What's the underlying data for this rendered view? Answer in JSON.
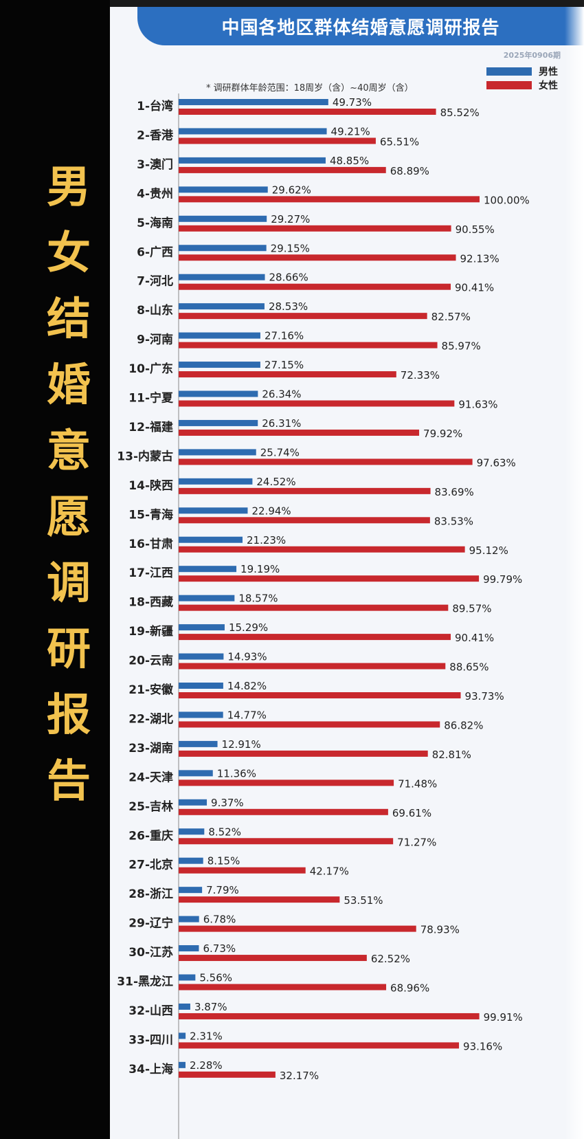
{
  "side_title": [
    "男",
    "女",
    "结",
    "婚",
    "意",
    "愿",
    "调",
    "研",
    "报",
    "告"
  ],
  "chart_data": {
    "type": "bar",
    "title": "中国各地区群体结婚意愿调研报告",
    "issue": "2025年0906期",
    "note": "* 调研群体年龄范围：18周岁（含）~40周岁（含）",
    "xlim": [
      0,
      100
    ],
    "legend_position": "top-right",
    "categories": [
      "1-台湾",
      "2-香港",
      "3-澳门",
      "4-贵州",
      "5-海南",
      "6-广西",
      "7-河北",
      "8-山东",
      "9-河南",
      "10-广东",
      "11-宁夏",
      "12-福建",
      "13-内蒙古",
      "14-陕西",
      "15-青海",
      "16-甘肃",
      "17-江西",
      "18-西藏",
      "19-新疆",
      "20-云南",
      "21-安徽",
      "22-湖北",
      "23-湖南",
      "24-天津",
      "25-吉林",
      "26-重庆",
      "27-北京",
      "28-浙江",
      "29-辽宁",
      "30-江苏",
      "31-黑龙江",
      "32-山西",
      "33-四川",
      "34-上海"
    ],
    "series": [
      {
        "name": "男性",
        "color": "#2e6bb0",
        "values": [
          49.73,
          49.21,
          48.85,
          29.62,
          29.27,
          29.15,
          28.66,
          28.53,
          27.16,
          27.15,
          26.34,
          26.31,
          25.74,
          24.52,
          22.94,
          21.23,
          19.19,
          18.57,
          15.29,
          14.93,
          14.82,
          14.77,
          12.91,
          11.36,
          9.37,
          8.52,
          8.15,
          7.79,
          6.78,
          6.73,
          5.56,
          3.87,
          2.31,
          2.28
        ],
        "labels": [
          "49.73%",
          "49.21%",
          "48.85%",
          "29.62%",
          "29.27%",
          "29.15%",
          "28.66%",
          "28.53%",
          "27.16%",
          "27.15%",
          "26.34%",
          "26.31%",
          "25.74%",
          "24.52%",
          "22.94%",
          "21.23%",
          "19.19%",
          "18.57%",
          "15.29%",
          "14.93%",
          "14.82%",
          "14.77%",
          "12.91%",
          "11.36%",
          "9.37%",
          "8.52%",
          "8.15%",
          "7.79%",
          "6.78%",
          "6.73%",
          "5.56%",
          "3.87%",
          "2.31%",
          "2.28%"
        ]
      },
      {
        "name": "女性",
        "color": "#c8282d",
        "values": [
          85.52,
          65.51,
          68.89,
          100.0,
          90.55,
          92.13,
          90.41,
          82.57,
          85.97,
          72.33,
          91.63,
          79.92,
          97.63,
          83.69,
          83.53,
          95.12,
          99.79,
          89.57,
          90.41,
          88.65,
          93.73,
          86.82,
          82.81,
          71.48,
          69.61,
          71.27,
          42.17,
          53.51,
          78.93,
          62.52,
          68.96,
          99.91,
          93.16,
          32.17
        ],
        "labels": [
          "85.52%",
          "65.51%",
          "68.89%",
          "100.00%",
          "90.55%",
          "92.13%",
          "90.41%",
          "82.57%",
          "85.97%",
          "72.33%",
          "91.63%",
          "79.92%",
          "97.63%",
          "83.69%",
          "83.53%",
          "95.12%",
          "99.79%",
          "89.57%",
          "90.41%",
          "88.65%",
          "93.73%",
          "86.82%",
          "82.81%",
          "71.48%",
          "69.61%",
          "71.27%",
          "42.17%",
          "53.51%",
          "78.93%",
          "62.52%",
          "68.96%",
          "99.91%",
          "93.16%",
          "32.17%"
        ]
      }
    ]
  }
}
